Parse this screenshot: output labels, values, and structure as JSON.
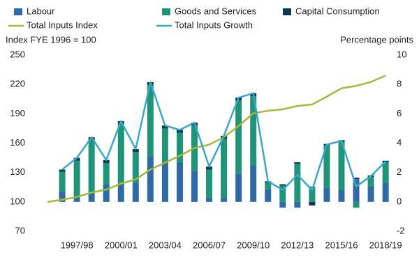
{
  "chart_data": {
    "type": "bar-line",
    "y_label": "Index FYE 1996 = 100",
    "y2_label": "Percentage points",
    "categories": [
      null,
      null,
      "1997/98",
      null,
      null,
      "2000/01",
      null,
      null,
      "2003/04",
      null,
      null,
      "2006/07",
      null,
      null,
      "2009/10",
      null,
      null,
      "2012/13",
      null,
      null,
      "2015/16",
      null,
      null,
      "2018/19"
    ],
    "series": [
      {
        "name": "Labour",
        "type": "bar",
        "axis": "y2",
        "color": "#2f6aa6",
        "values": [
          null,
          0.7,
          0.3,
          0.6,
          1.2,
          1.3,
          1.3,
          3.1,
          2.65,
          2.7,
          2.1,
          0.25,
          0.25,
          1.9,
          2.5,
          0.85,
          -0.4,
          -0.4,
          0.05,
          0.95,
          0.8,
          1.55,
          1.1,
          1.3
        ]
      },
      {
        "name": "Goods and Services",
        "type": "bar",
        "axis": "y2",
        "color": "#1f9479",
        "values": [
          null,
          1.35,
          2.5,
          3.6,
          1.45,
          4.0,
          2.1,
          4.85,
          2.35,
          2.0,
          3.1,
          1.95,
          4.05,
          5.0,
          4.7,
          0.45,
          1.1,
          2.6,
          1.0,
          2.9,
          3.3,
          -0.4,
          0.6,
          1.4
        ]
      },
      {
        "name": "Capital Consumption",
        "type": "bar",
        "axis": "y2",
        "color": "#0e3a4e",
        "values": [
          null,
          0.15,
          0.2,
          0.2,
          0.2,
          0.2,
          0.2,
          0.2,
          0.2,
          0.2,
          0.2,
          0.2,
          0.2,
          0.2,
          0.2,
          0.1,
          0.1,
          0.1,
          -0.25,
          0.1,
          0.1,
          0.1,
          0.1,
          0.1
        ]
      },
      {
        "name": "Total Inputs Index",
        "type": "line",
        "axis": "y",
        "color": "#a6b73a",
        "values": [
          100,
          102.2,
          105,
          109.5,
          112.5,
          118.7,
          123,
          133,
          140,
          147,
          155,
          158.5,
          166,
          177.5,
          190.5,
          193,
          194.5,
          198,
          199.5,
          207.5,
          216,
          218.5,
          222.5,
          229
        ]
      },
      {
        "name": "Total Inputs Growth",
        "type": "line",
        "axis": "y2",
        "color": "#3aa7c9",
        "values": [
          null,
          2.2,
          3.0,
          4.4,
          2.85,
          5.5,
          3.6,
          8.15,
          5.2,
          4.9,
          5.4,
          2.4,
          4.5,
          7.1,
          7.4,
          1.4,
          0.8,
          1.85,
          0.8,
          3.9,
          4.15,
          1.05,
          1.75,
          2.75
        ]
      }
    ],
    "ylim": [
      70,
      250
    ],
    "yticks": [
      70,
      100,
      130,
      160,
      190,
      220,
      250
    ],
    "y2lim": [
      -2,
      10
    ],
    "y2ticks": [
      -2,
      0,
      2,
      4,
      6,
      8,
      10
    ]
  }
}
